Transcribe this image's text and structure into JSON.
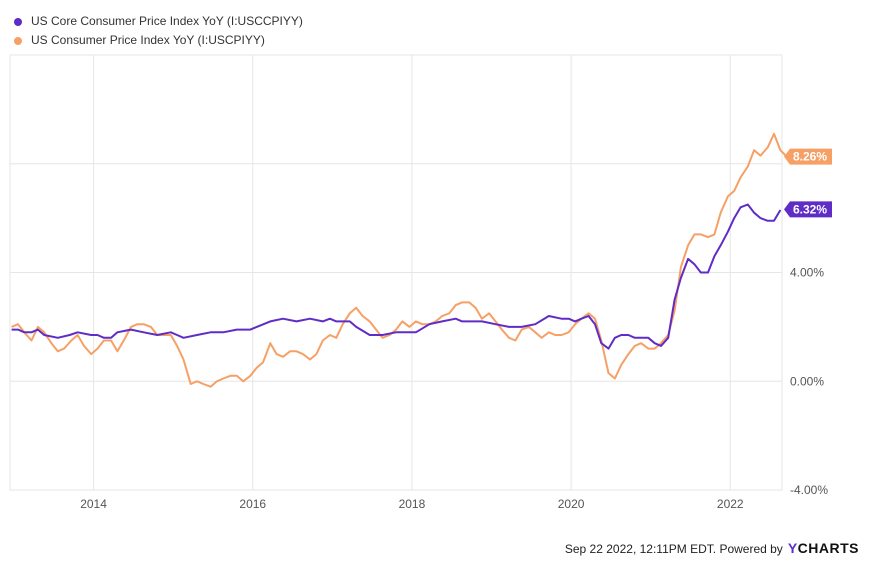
{
  "legend": {
    "core_label": "US Core Consumer Price Index YoY (I:USCCPIYY)",
    "cpi_label": "US Consumer Price Index YoY (I:USCPIYY)"
  },
  "footer": {
    "timestamp": "Sep 22 2022, 12:11PM EDT.",
    "powered_by": "Powered by",
    "brand_y": "Y",
    "brand_rest": "CHARTS"
  },
  "colors": {
    "core": "#5f2cc6",
    "cpi": "#f6a066",
    "grid": "#e6e6e6",
    "axis_text": "#555555"
  },
  "chart_data": {
    "type": "line",
    "x_ticks": [
      "2014",
      "2016",
      "2018",
      "2020",
      "2022"
    ],
    "y_ticks": [
      "4.00%",
      "0.00%",
      "-4.00%"
    ],
    "ylim": [
      -4,
      12
    ],
    "xlim": [
      2012.95,
      2022.65
    ],
    "grid": true,
    "legend_position": "top-left",
    "end_labels": [
      {
        "series": "core",
        "text": "6.32%",
        "value": 6.32
      },
      {
        "series": "cpi",
        "text": "8.26%",
        "value": 8.26
      }
    ],
    "series": [
      {
        "key": "core",
        "name": "US Core Consumer Price Index YoY (I:USCCPIYY)",
        "points": [
          [
            2012.97,
            1.9
          ],
          [
            2013.05,
            1.9
          ],
          [
            2013.13,
            1.8
          ],
          [
            2013.22,
            1.8
          ],
          [
            2013.3,
            1.9
          ],
          [
            2013.38,
            1.7
          ],
          [
            2013.55,
            1.6
          ],
          [
            2013.7,
            1.7
          ],
          [
            2013.8,
            1.8
          ],
          [
            2013.97,
            1.7
          ],
          [
            2014.05,
            1.7
          ],
          [
            2014.13,
            1.6
          ],
          [
            2014.22,
            1.6
          ],
          [
            2014.3,
            1.8
          ],
          [
            2014.47,
            1.9
          ],
          [
            2014.63,
            1.8
          ],
          [
            2014.8,
            1.7
          ],
          [
            2014.97,
            1.8
          ],
          [
            2015.05,
            1.7
          ],
          [
            2015.13,
            1.6
          ],
          [
            2015.3,
            1.7
          ],
          [
            2015.47,
            1.8
          ],
          [
            2015.63,
            1.8
          ],
          [
            2015.8,
            1.9
          ],
          [
            2015.97,
            1.9
          ],
          [
            2016.05,
            2.0
          ],
          [
            2016.22,
            2.2
          ],
          [
            2016.38,
            2.3
          ],
          [
            2016.55,
            2.2
          ],
          [
            2016.72,
            2.3
          ],
          [
            2016.88,
            2.2
          ],
          [
            2016.97,
            2.3
          ],
          [
            2017.05,
            2.2
          ],
          [
            2017.22,
            2.2
          ],
          [
            2017.3,
            2.0
          ],
          [
            2017.47,
            1.7
          ],
          [
            2017.63,
            1.7
          ],
          [
            2017.8,
            1.8
          ],
          [
            2017.97,
            1.8
          ],
          [
            2018.05,
            1.8
          ],
          [
            2018.22,
            2.1
          ],
          [
            2018.38,
            2.2
          ],
          [
            2018.55,
            2.3
          ],
          [
            2018.63,
            2.2
          ],
          [
            2018.72,
            2.2
          ],
          [
            2018.88,
            2.2
          ],
          [
            2019.05,
            2.1
          ],
          [
            2019.22,
            2.0
          ],
          [
            2019.38,
            2.0
          ],
          [
            2019.55,
            2.1
          ],
          [
            2019.72,
            2.4
          ],
          [
            2019.88,
            2.3
          ],
          [
            2019.97,
            2.3
          ],
          [
            2020.05,
            2.2
          ],
          [
            2020.13,
            2.3
          ],
          [
            2020.22,
            2.4
          ],
          [
            2020.3,
            2.1
          ],
          [
            2020.38,
            1.4
          ],
          [
            2020.47,
            1.2
          ],
          [
            2020.55,
            1.6
          ],
          [
            2020.63,
            1.7
          ],
          [
            2020.72,
            1.7
          ],
          [
            2020.8,
            1.6
          ],
          [
            2020.88,
            1.6
          ],
          [
            2020.97,
            1.6
          ],
          [
            2021.05,
            1.4
          ],
          [
            2021.13,
            1.3
          ],
          [
            2021.22,
            1.6
          ],
          [
            2021.3,
            3.0
          ],
          [
            2021.38,
            3.8
          ],
          [
            2021.47,
            4.5
          ],
          [
            2021.55,
            4.3
          ],
          [
            2021.63,
            4.0
          ],
          [
            2021.72,
            4.0
          ],
          [
            2021.8,
            4.6
          ],
          [
            2021.88,
            5.0
          ],
          [
            2021.97,
            5.5
          ],
          [
            2022.05,
            6.0
          ],
          [
            2022.13,
            6.4
          ],
          [
            2022.22,
            6.5
          ],
          [
            2022.3,
            6.2
          ],
          [
            2022.38,
            6.0
          ],
          [
            2022.47,
            5.9
          ],
          [
            2022.55,
            5.9
          ],
          [
            2022.63,
            6.3
          ]
        ]
      },
      {
        "key": "cpi",
        "name": "US Consumer Price Index YoY (I:USCPIYY)",
        "points": [
          [
            2012.97,
            2.0
          ],
          [
            2013.05,
            2.1
          ],
          [
            2013.13,
            1.8
          ],
          [
            2013.22,
            1.5
          ],
          [
            2013.3,
            2.0
          ],
          [
            2013.38,
            1.8
          ],
          [
            2013.47,
            1.4
          ],
          [
            2013.55,
            1.1
          ],
          [
            2013.63,
            1.2
          ],
          [
            2013.72,
            1.5
          ],
          [
            2013.8,
            1.7
          ],
          [
            2013.88,
            1.3
          ],
          [
            2013.97,
            1.0
          ],
          [
            2014.05,
            1.2
          ],
          [
            2014.13,
            1.5
          ],
          [
            2014.22,
            1.5
          ],
          [
            2014.3,
            1.1
          ],
          [
            2014.38,
            1.5
          ],
          [
            2014.47,
            2.0
          ],
          [
            2014.55,
            2.1
          ],
          [
            2014.63,
            2.1
          ],
          [
            2014.72,
            2.0
          ],
          [
            2014.8,
            1.7
          ],
          [
            2014.88,
            1.7
          ],
          [
            2014.97,
            1.7
          ],
          [
            2015.05,
            1.3
          ],
          [
            2015.13,
            0.8
          ],
          [
            2015.22,
            -0.1
          ],
          [
            2015.3,
            0.0
          ],
          [
            2015.38,
            -0.1
          ],
          [
            2015.47,
            -0.2
          ],
          [
            2015.55,
            0.0
          ],
          [
            2015.63,
            0.1
          ],
          [
            2015.72,
            0.2
          ],
          [
            2015.8,
            0.2
          ],
          [
            2015.88,
            0.0
          ],
          [
            2015.97,
            0.2
          ],
          [
            2016.05,
            0.5
          ],
          [
            2016.13,
            0.7
          ],
          [
            2016.22,
            1.4
          ],
          [
            2016.3,
            1.0
          ],
          [
            2016.38,
            0.9
          ],
          [
            2016.47,
            1.1
          ],
          [
            2016.55,
            1.1
          ],
          [
            2016.63,
            1.0
          ],
          [
            2016.72,
            0.8
          ],
          [
            2016.8,
            1.0
          ],
          [
            2016.88,
            1.5
          ],
          [
            2016.97,
            1.7
          ],
          [
            2017.05,
            1.6
          ],
          [
            2017.13,
            2.1
          ],
          [
            2017.22,
            2.5
          ],
          [
            2017.3,
            2.7
          ],
          [
            2017.38,
            2.4
          ],
          [
            2017.47,
            2.2
          ],
          [
            2017.55,
            1.9
          ],
          [
            2017.63,
            1.6
          ],
          [
            2017.72,
            1.7
          ],
          [
            2017.8,
            1.9
          ],
          [
            2017.88,
            2.2
          ],
          [
            2017.97,
            2.0
          ],
          [
            2018.05,
            2.2
          ],
          [
            2018.13,
            2.1
          ],
          [
            2018.22,
            2.1
          ],
          [
            2018.3,
            2.2
          ],
          [
            2018.38,
            2.4
          ],
          [
            2018.47,
            2.5
          ],
          [
            2018.55,
            2.8
          ],
          [
            2018.63,
            2.9
          ],
          [
            2018.72,
            2.9
          ],
          [
            2018.8,
            2.7
          ],
          [
            2018.88,
            2.3
          ],
          [
            2018.97,
            2.5
          ],
          [
            2019.05,
            2.2
          ],
          [
            2019.13,
            1.9
          ],
          [
            2019.22,
            1.6
          ],
          [
            2019.3,
            1.5
          ],
          [
            2019.38,
            1.9
          ],
          [
            2019.47,
            2.0
          ],
          [
            2019.55,
            1.8
          ],
          [
            2019.63,
            1.6
          ],
          [
            2019.72,
            1.8
          ],
          [
            2019.8,
            1.7
          ],
          [
            2019.88,
            1.7
          ],
          [
            2019.97,
            1.8
          ],
          [
            2020.05,
            2.1
          ],
          [
            2020.13,
            2.3
          ],
          [
            2020.22,
            2.5
          ],
          [
            2020.3,
            2.3
          ],
          [
            2020.38,
            1.5
          ],
          [
            2020.47,
            0.3
          ],
          [
            2020.55,
            0.1
          ],
          [
            2020.63,
            0.6
          ],
          [
            2020.72,
            1.0
          ],
          [
            2020.8,
            1.3
          ],
          [
            2020.88,
            1.4
          ],
          [
            2020.97,
            1.2
          ],
          [
            2021.05,
            1.2
          ],
          [
            2021.13,
            1.4
          ],
          [
            2021.22,
            1.7
          ],
          [
            2021.3,
            2.6
          ],
          [
            2021.38,
            4.2
          ],
          [
            2021.47,
            5.0
          ],
          [
            2021.55,
            5.4
          ],
          [
            2021.63,
            5.4
          ],
          [
            2021.72,
            5.3
          ],
          [
            2021.8,
            5.4
          ],
          [
            2021.88,
            6.2
          ],
          [
            2021.97,
            6.8
          ],
          [
            2022.05,
            7.0
          ],
          [
            2022.13,
            7.5
          ],
          [
            2022.22,
            7.9
          ],
          [
            2022.3,
            8.5
          ],
          [
            2022.38,
            8.3
          ],
          [
            2022.47,
            8.6
          ],
          [
            2022.55,
            9.1
          ],
          [
            2022.63,
            8.5
          ],
          [
            2022.71,
            8.26
          ]
        ]
      }
    ]
  }
}
